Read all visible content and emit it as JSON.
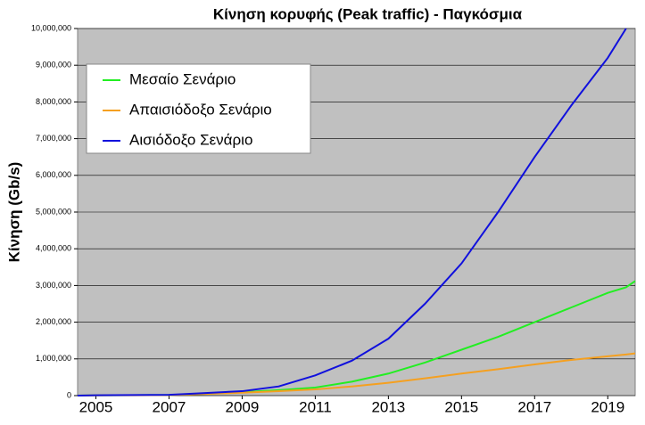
{
  "chart_data": {
    "type": "line",
    "title": "Κίνηση κορυφής (Peak traffic) - Παγκόσμια",
    "y_label": "Κίνηση (Gb/s)",
    "x": [
      2004.5,
      2005,
      2006,
      2007,
      2008,
      2009,
      2010,
      2011,
      2012,
      2013,
      2014,
      2015,
      2016,
      2017,
      2018,
      2019,
      2019.5,
      2019.75
    ],
    "series": [
      {
        "name": "Μεσαίο Σενάριο",
        "color": "#22ee22",
        "values": [
          0,
          8000,
          12000,
          18000,
          50000,
          90000,
          150000,
          220000,
          380000,
          600000,
          900000,
          1250000,
          1600000,
          2000000,
          2400000,
          2800000,
          2950000,
          3120000
        ]
      },
      {
        "name": "Απαισιόδοξο Σενάριο",
        "color": "#f5a020",
        "values": [
          0,
          7000,
          10000,
          15000,
          45000,
          80000,
          120000,
          170000,
          250000,
          350000,
          470000,
          600000,
          720000,
          850000,
          970000,
          1070000,
          1120000,
          1150000
        ]
      },
      {
        "name": "Αισιόδοξο Σενάριο",
        "color": "#1010dd",
        "values": [
          0,
          10000,
          15000,
          20000,
          70000,
          120000,
          250000,
          550000,
          950000,
          1550000,
          2500000,
          3600000,
          5000000,
          6500000,
          7900000,
          9200000,
          10000000,
          null
        ]
      }
    ],
    "xlim": [
      2004.5,
      2019.75
    ],
    "xticks": [
      2005,
      2007,
      2009,
      2011,
      2013,
      2015,
      2017,
      2019
    ],
    "ylim": [
      0,
      10000000
    ],
    "yticks": [
      0,
      {
        "value": 1000000,
        "label": "1,000,000"
      },
      {
        "value": 2000000,
        "label": "2,000,000"
      },
      {
        "value": 3000000,
        "label": "3,000,000"
      },
      {
        "value": 4000000,
        "label": "4,000,000"
      },
      {
        "value": 5000000,
        "label": "5,000,000"
      },
      {
        "value": 6000000,
        "label": "6,000,000"
      },
      {
        "value": 7000000,
        "label": "7,000,000"
      },
      {
        "value": 8000000,
        "label": "8,000,000"
      },
      {
        "value": 9000000,
        "label": "9,000,000"
      },
      {
        "value": 10000000,
        "label": "10,000,000"
      }
    ],
    "grid": true,
    "legend": "upper left"
  }
}
